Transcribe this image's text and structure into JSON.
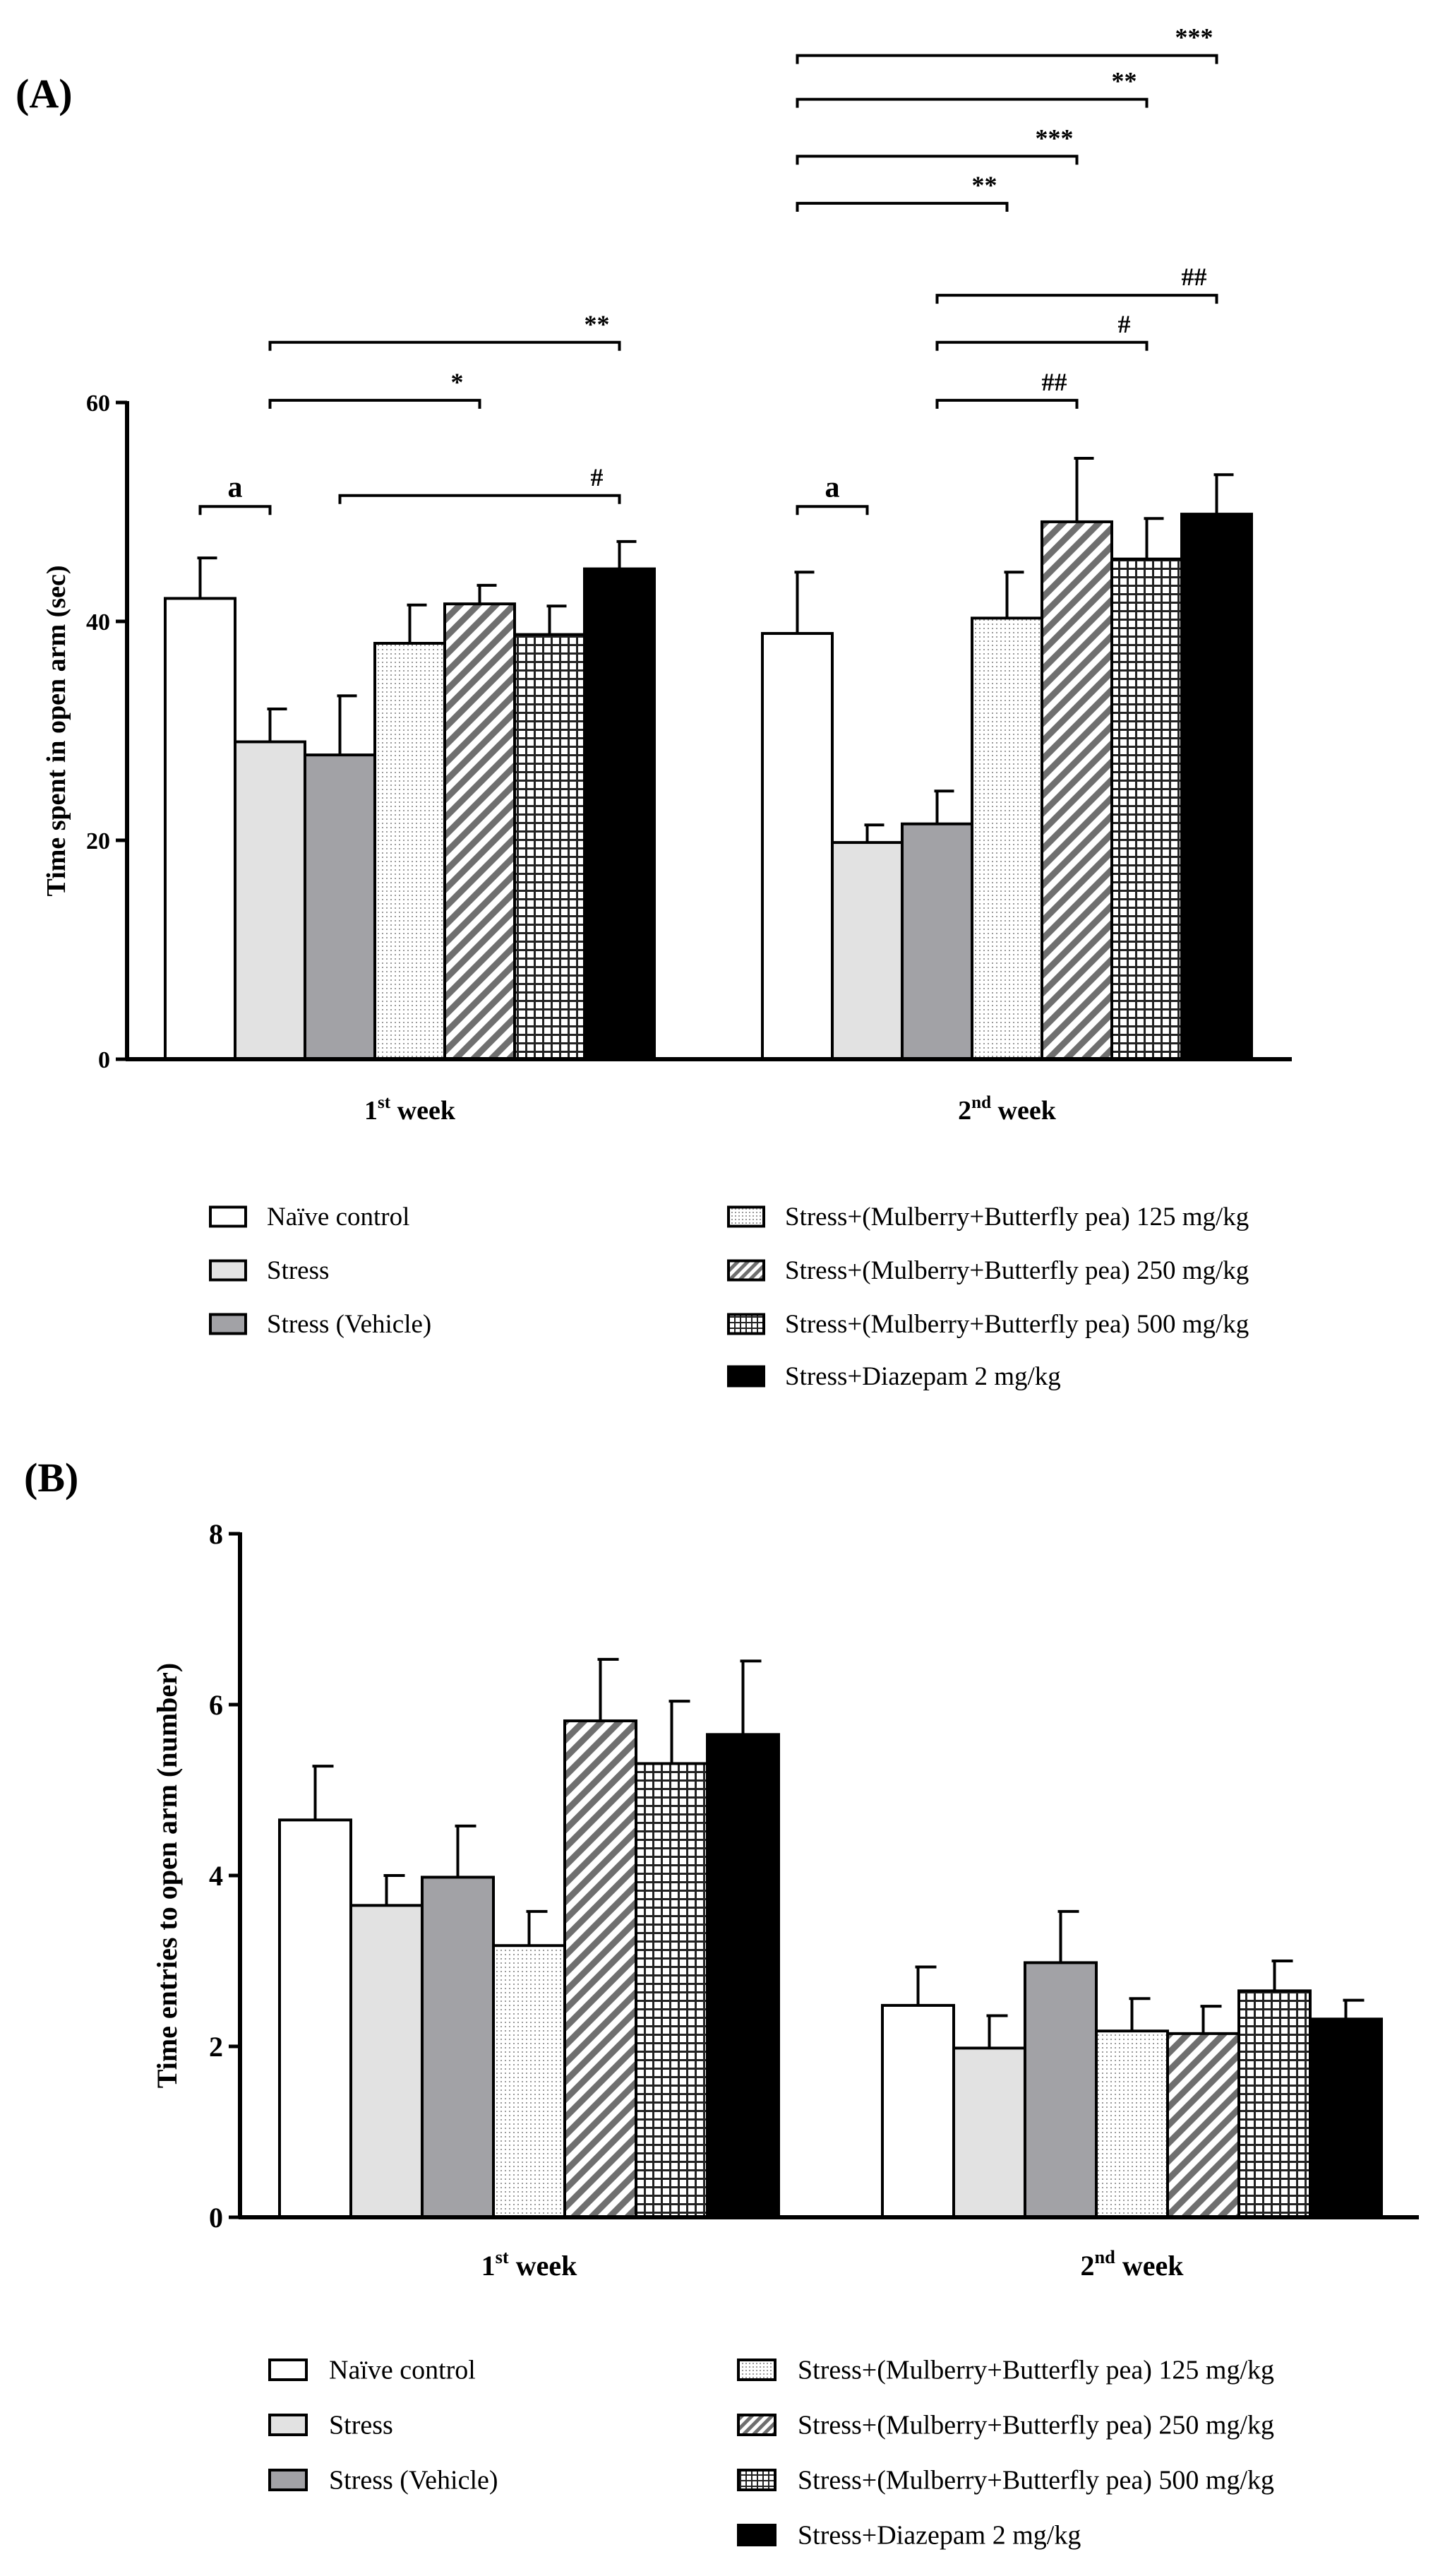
{
  "panels": {
    "a": {
      "letter": "(A)"
    },
    "b": {
      "letter": "(B)"
    }
  },
  "legend_a": {
    "items": [
      "Naïve control",
      "Stress",
      "Stress (Vehicle)",
      "Stress+(Mulberry+Butterfly pea) 125 mg/kg",
      "Stress+(Mulberry+Butterfly pea) 250 mg/kg",
      "Stress+(Mulberry+Butterfly pea) 500 mg/kg",
      "Stress+Diazepam 2 mg/kg"
    ]
  },
  "legend_b": {
    "items": [
      "Naïve  control",
      "Stress",
      "Stress (Vehicle)",
      "Stress+(Mulberry+Butterfly pea) 125 mg/kg",
      "Stress+(Mulberry+Butterfly pea) 250 mg/kg",
      "Stress+(Mulberry+Butterfly pea) 500 mg/kg",
      "Stress+Diazepam 2 mg/kg"
    ]
  },
  "chart_data": [
    {
      "type": "bar",
      "panel": "(A)",
      "ylabel": "Time spent in open arm (sec)",
      "xlabel": "",
      "ylim": [
        0,
        60
      ],
      "yticks": [
        "0",
        "20",
        "40",
        "60"
      ],
      "categories": [
        {
          "base": "1",
          "sup": "st",
          "rest": " week"
        },
        {
          "base": "2",
          "sup": "nd",
          "rest": " week"
        }
      ],
      "series": [
        {
          "name": "Naïve control",
          "values": [
            42.1,
            38.9
          ],
          "errors": [
            3.7,
            5.6
          ]
        },
        {
          "name": "Stress",
          "values": [
            29.0,
            19.8
          ],
          "errors": [
            3.0,
            1.6
          ]
        },
        {
          "name": "Stress (Vehicle)",
          "values": [
            27.8,
            21.5
          ],
          "errors": [
            5.4,
            3.0
          ]
        },
        {
          "name": "Stress+(Mulberry+Butterfly pea) 125 mg/kg",
          "values": [
            38.0,
            40.3
          ],
          "errors": [
            3.5,
            4.2
          ]
        },
        {
          "name": "Stress+(Mulberry+Butterfly pea) 250 mg/kg",
          "values": [
            41.6,
            49.1
          ],
          "errors": [
            1.7,
            5.8
          ]
        },
        {
          "name": "Stress+(Mulberry+Butterfly pea) 500 mg/kg",
          "values": [
            38.8,
            45.7
          ],
          "errors": [
            2.6,
            3.7
          ]
        },
        {
          "name": "Stress+Diazepam 2 mg/kg",
          "values": [
            44.8,
            49.8
          ],
          "errors": [
            2.5,
            3.6
          ]
        }
      ],
      "annotations": [
        {
          "label": "a",
          "from": [
            0,
            0
          ],
          "to": [
            0,
            1
          ],
          "level": 50.5,
          "bold": true
        },
        {
          "label": "*",
          "from": [
            0,
            1
          ],
          "to": [
            0,
            4
          ],
          "level": 60.2
        },
        {
          "label": "**",
          "from": [
            0,
            1
          ],
          "to": [
            0,
            6
          ],
          "level": 65.5
        },
        {
          "label": "#",
          "from": [
            0,
            2
          ],
          "to": [
            0,
            6
          ],
          "level": 51.5
        },
        {
          "label": "a",
          "from": [
            1,
            0
          ],
          "to": [
            1,
            1
          ],
          "level": 50.5,
          "bold": true
        },
        {
          "label": "##",
          "from": [
            1,
            2
          ],
          "to": [
            1,
            4
          ],
          "level": 60.2
        },
        {
          "label": "#",
          "from": [
            1,
            2
          ],
          "to": [
            1,
            5
          ],
          "level": 65.5
        },
        {
          "label": "##",
          "from": [
            1,
            2
          ],
          "to": [
            1,
            6
          ],
          "level": 69.8
        },
        {
          "label": "**",
          "from": [
            1,
            0
          ],
          "to": [
            1,
            3
          ],
          "level": 78.2
        },
        {
          "label": "***",
          "from": [
            1,
            0
          ],
          "to": [
            1,
            4
          ],
          "level": 82.5
        },
        {
          "label": "**",
          "from": [
            1,
            0
          ],
          "to": [
            1,
            5
          ],
          "level": 87.7
        },
        {
          "label": "***",
          "from": [
            1,
            0
          ],
          "to": [
            1,
            6
          ],
          "level": 91.7
        }
      ]
    },
    {
      "type": "bar",
      "panel": "(B)",
      "ylabel": "Time entries to open arm (number)",
      "xlabel": "",
      "ylim": [
        0,
        8
      ],
      "yticks": [
        "0",
        "2",
        "4",
        "6",
        "8"
      ],
      "categories": [
        {
          "base": "1",
          "sup": "st",
          "rest": " week"
        },
        {
          "base": "2",
          "sup": "nd",
          "rest": " week"
        }
      ],
      "series": [
        {
          "name": "Naïve  control",
          "values": [
            4.65,
            2.48
          ],
          "errors": [
            0.63,
            0.45
          ]
        },
        {
          "name": "Stress",
          "values": [
            3.65,
            1.98
          ],
          "errors": [
            0.35,
            0.38
          ]
        },
        {
          "name": "Stress (Vehicle)",
          "values": [
            3.98,
            2.98
          ],
          "errors": [
            0.6,
            0.6
          ]
        },
        {
          "name": "Stress+(Mulberry+Butterfly pea) 125 mg/kg",
          "values": [
            3.18,
            2.18
          ],
          "errors": [
            0.4,
            0.38
          ]
        },
        {
          "name": "Stress+(Mulberry+Butterfly pea) 250 mg/kg",
          "values": [
            5.81,
            2.15
          ],
          "errors": [
            0.72,
            0.32
          ]
        },
        {
          "name": "Stress+(Mulberry+Butterfly pea) 500 mg/kg",
          "values": [
            5.31,
            2.65
          ],
          "errors": [
            0.73,
            0.35
          ]
        },
        {
          "name": "Stress+Diazepam 2 mg/kg",
          "values": [
            5.65,
            2.32
          ],
          "errors": [
            0.86,
            0.22
          ]
        }
      ],
      "annotations": []
    }
  ]
}
